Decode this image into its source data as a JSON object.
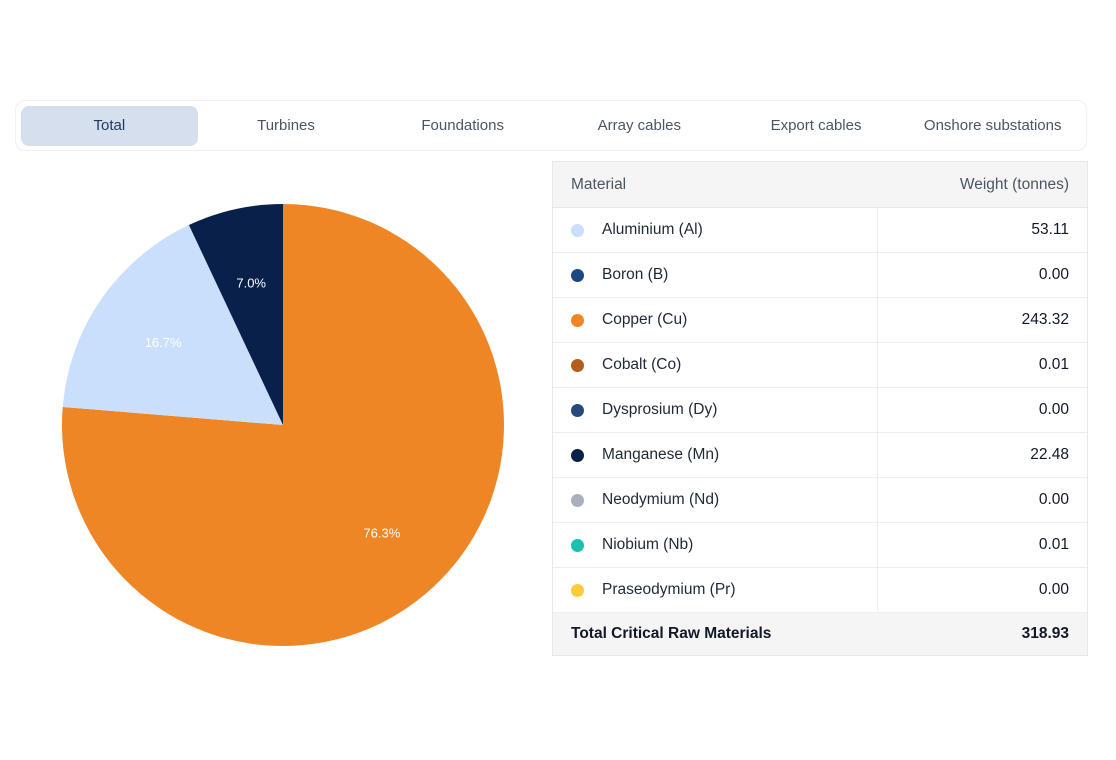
{
  "tabs": [
    "Total",
    "Turbines",
    "Foundations",
    "Array cables",
    "Export cables",
    "Onshore substations"
  ],
  "active_tab": 0,
  "table": {
    "header_material": "Material",
    "header_weight": "Weight (tonnes)",
    "rows": [
      {
        "name": "Aluminium (Al)",
        "value": "53.11",
        "color": "#c9dffb"
      },
      {
        "name": "Boron (B)",
        "value": "0.00",
        "color": "#1d4780"
      },
      {
        "name": "Copper (Cu)",
        "value": "243.32",
        "color": "#ef8626"
      },
      {
        "name": "Cobalt (Co)",
        "value": "0.01",
        "color": "#b35e1c"
      },
      {
        "name": "Dysprosium (Dy)",
        "value": "0.00",
        "color": "#27497a"
      },
      {
        "name": "Manganese (Mn)",
        "value": "22.48",
        "color": "#08204a"
      },
      {
        "name": "Neodymium (Nd)",
        "value": "0.00",
        "color": "#a9b0bd"
      },
      {
        "name": "Niobium (Nb)",
        "value": "0.01",
        "color": "#16c1b5"
      },
      {
        "name": "Praseodymium (Pr)",
        "value": "0.00",
        "color": "#fccb38"
      }
    ],
    "total_label": "Total Critical Raw Materials",
    "total_value": "318.93"
  },
  "chart_data": {
    "type": "pie",
    "start": "12 o'clock, clockwise",
    "slices": [
      {
        "name": "Copper (Cu)",
        "value": 76.3,
        "label": "76.3%",
        "color": "#ef8626",
        "label_color": "#ffffff"
      },
      {
        "name": "Aluminium (Al)",
        "value": 16.7,
        "label": "16.7%",
        "color": "#c9dffb",
        "label_color": "#ffffff"
      },
      {
        "name": "Manganese (Mn)",
        "value": 7.0,
        "label": "7.0%",
        "color": "#08204a",
        "label_color": "#ffffff"
      }
    ]
  }
}
